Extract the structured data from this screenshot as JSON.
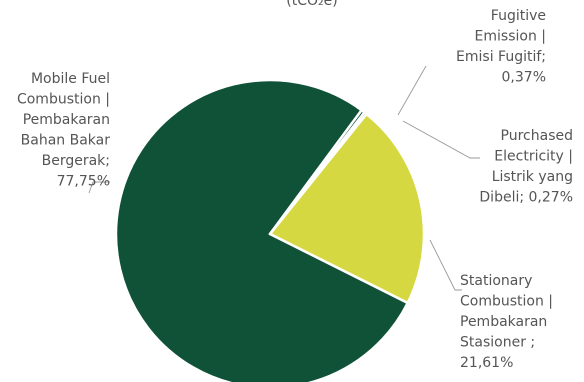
{
  "chart_data": {
    "type": "pie",
    "title_fragment": "(tCO₂e)",
    "slices": [
      {
        "key": "mobile",
        "lines": [
          "Mobile Fuel",
          "Combustion |",
          "Pembakaran",
          "Bahan Bakar",
          "Bergerak;",
          "77,75%"
        ],
        "value": 77.75,
        "color": "#0f5237"
      },
      {
        "key": "fugitive",
        "lines": [
          "Fugitive",
          "Emission |",
          "Emisi Fugitif;",
          "0,37%"
        ],
        "value": 0.37,
        "color": "#0f5237"
      },
      {
        "key": "electricity",
        "lines": [
          "Purchased",
          "Electricity |",
          "Listrik yang",
          "Dibeli; 0,27%"
        ],
        "value": 0.27,
        "color": "#0f5237"
      },
      {
        "key": "stationary",
        "lines": [
          "Stationary",
          "Combustion |",
          "Pembakaran",
          "Stasioner ;",
          "21,61%"
        ],
        "value": 21.61,
        "color": "#d5d840"
      }
    ]
  }
}
